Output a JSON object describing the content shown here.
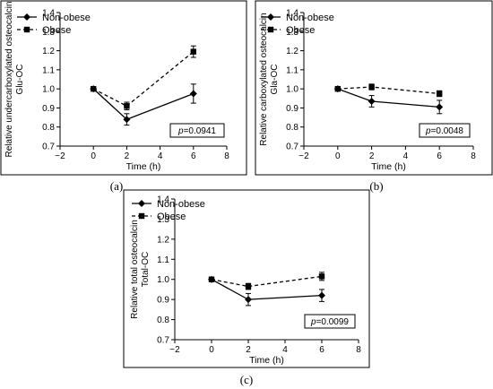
{
  "figure": {
    "panels": [
      {
        "label": "(a)",
        "pvalue_prefix": "p",
        "pvalue_rest": "=0.0941"
      },
      {
        "label": "(b)",
        "pvalue_prefix": "p",
        "pvalue_rest": "=0.0048"
      },
      {
        "label": "(c)",
        "pvalue_prefix": "p",
        "pvalue_rest": "=0.0099"
      }
    ]
  },
  "chart_data": [
    {
      "type": "line",
      "xlabel": "Time (h)",
      "ylabel_line1": "Relative undercarboxylated osteocalcin",
      "ylabel_line2": "Glu-OC",
      "xlim": [
        -2,
        8
      ],
      "ylim": [
        0.7,
        1.4
      ],
      "xticks": [
        -2,
        0,
        2,
        4,
        6,
        8
      ],
      "yticks": [
        0.7,
        0.8,
        0.9,
        1.0,
        1.1,
        1.2,
        1.3,
        1.4
      ],
      "ytick_labels": [
        "0.7",
        "0.8",
        "0.9",
        "1.0",
        "1.1",
        "1.2",
        "1.3",
        "1.4"
      ],
      "legend_position": "top-left",
      "annotation": "p=0.0941",
      "series": [
        {
          "name": "Non-obese",
          "marker": "diamond",
          "line": "solid",
          "x": [
            0,
            2,
            6
          ],
          "y": [
            1.0,
            0.84,
            0.975
          ],
          "err": [
            0,
            0.03,
            0.05
          ]
        },
        {
          "name": "Obese",
          "marker": "square",
          "line": "dashed",
          "x": [
            0,
            2,
            6
          ],
          "y": [
            1.0,
            0.91,
            1.195
          ],
          "err": [
            0,
            0.02,
            0.03
          ]
        }
      ]
    },
    {
      "type": "line",
      "xlabel": "Time (h)",
      "ylabel_line1": "Relative carboxylated osteocalcin",
      "ylabel_line2": "Gla-OC",
      "xlim": [
        -2,
        8
      ],
      "ylim": [
        0.7,
        1.4
      ],
      "xticks": [
        -2,
        0,
        2,
        4,
        6,
        8
      ],
      "yticks": [
        0.7,
        0.8,
        0.9,
        1.0,
        1.1,
        1.2,
        1.3,
        1.4
      ],
      "ytick_labels": [
        "0.7",
        "0.8",
        "0.9",
        "1.0",
        "1.1",
        "1.2",
        "1.3",
        "1.4"
      ],
      "legend_position": "top-left",
      "annotation": "p=0.0048",
      "series": [
        {
          "name": "Non-obese",
          "marker": "diamond",
          "line": "solid",
          "x": [
            0,
            2,
            6
          ],
          "y": [
            1.0,
            0.935,
            0.905
          ],
          "err": [
            0,
            0.03,
            0.035
          ]
        },
        {
          "name": "Obese",
          "marker": "square",
          "line": "dashed",
          "x": [
            0,
            2,
            6
          ],
          "y": [
            1.0,
            1.01,
            0.975
          ],
          "err": [
            0,
            0.015,
            0.015
          ]
        }
      ]
    },
    {
      "type": "line",
      "xlabel": "Time (h)",
      "ylabel_line1": "Relative total osteocalcin",
      "ylabel_line2": "Total-OC",
      "xlim": [
        -2,
        8
      ],
      "ylim": [
        0.7,
        1.4
      ],
      "xticks": [
        -2,
        0,
        2,
        4,
        6,
        8
      ],
      "yticks": [
        0.7,
        0.8,
        0.9,
        1.0,
        1.1,
        1.2,
        1.3,
        1.4
      ],
      "ytick_labels": [
        "0.7",
        "0.8",
        "0.9",
        "1.0",
        "1.1",
        "1.2",
        "1.3",
        "1.4"
      ],
      "legend_position": "top-left",
      "annotation": "p=0.0099",
      "series": [
        {
          "name": "Non-obese",
          "marker": "diamond",
          "line": "solid",
          "x": [
            0,
            2,
            6
          ],
          "y": [
            1.0,
            0.9,
            0.92
          ],
          "err": [
            0,
            0.03,
            0.03
          ]
        },
        {
          "name": "Obese",
          "marker": "square",
          "line": "dashed",
          "x": [
            0,
            2,
            6
          ],
          "y": [
            1.0,
            0.965,
            1.015
          ],
          "err": [
            0,
            0.015,
            0.02
          ]
        }
      ]
    }
  ]
}
